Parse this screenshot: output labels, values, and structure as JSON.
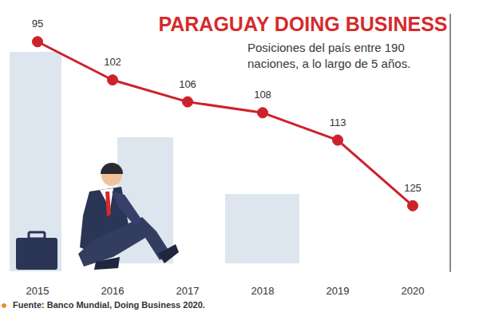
{
  "chart_data": {
    "type": "line",
    "title": "PARAGUAY DOING BUSINESS",
    "subtitle": "Posiciones del país entre 190 naciones, a lo largo de 5 años.",
    "source": "Fuente: Banco Mundial, Doing Business 2020.",
    "categories": [
      "2015",
      "2016",
      "2017",
      "2018",
      "2019",
      "2020"
    ],
    "values": [
      95,
      102,
      106,
      108,
      113,
      125
    ],
    "color": "#cc2229",
    "marker": "circle",
    "ylim": [
      137,
      90
    ],
    "grid": false,
    "data_labels": true,
    "tick_labels": "x"
  }
}
